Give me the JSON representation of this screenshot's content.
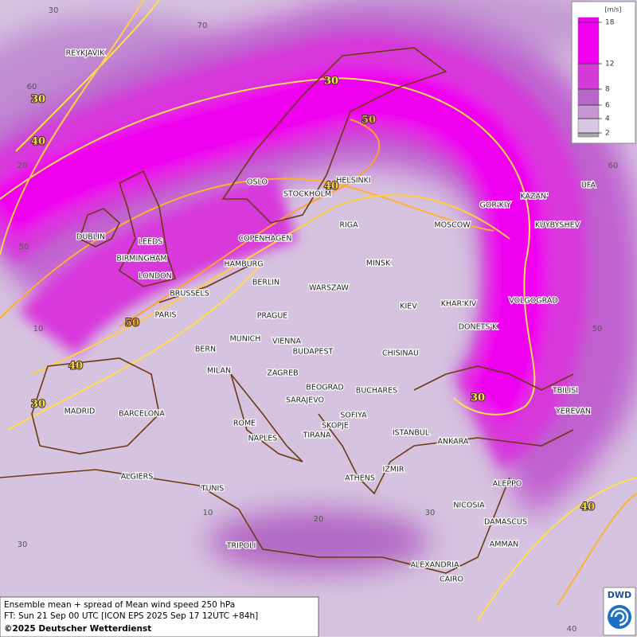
{
  "legend": {
    "unit": "[m/s]",
    "ticks": [
      18,
      12,
      8,
      6,
      4,
      2
    ],
    "colors": [
      "#f000f0",
      "#d43ad8",
      "#b866c8",
      "#c596d3",
      "#d9c6e3",
      "#a8a8a8"
    ]
  },
  "cities": [
    "REYKJAVIK",
    "OSLO",
    "STOCKHOLM",
    "HELSINKI",
    "DUBLIN",
    "LEEDS",
    "BIRMINGHAM",
    "LONDON",
    "COPENHAGEN",
    "HAMBURG",
    "BERLIN",
    "RIGA",
    "MOSCOW",
    "GOR'KIY",
    "KAZAN'",
    "UFA",
    "KUYBYSHEV",
    "MINSK",
    "WARSZAW",
    "KIEV",
    "KHAR'KIV",
    "VOLGOGRAD",
    "BRUSSELS",
    "PARIS",
    "PRAGUE",
    "DONETS'K",
    "MUNICH",
    "VIENNA",
    "BUDAPEST",
    "CHISINAU",
    "BERN",
    "MILAN",
    "ZAGREB",
    "BEOGRAD",
    "BUCHARES",
    "TBILISI",
    "YEREVAN",
    "MADRID",
    "BARCELONA",
    "SARAJEVO",
    "ROME",
    "SOFIYA",
    "SKOPJE",
    "TIRANA",
    "NAPLES",
    "ISTANBUL",
    "ANKARA",
    "ALGIERS",
    "ATHENS",
    "IZMIR",
    "ALEPPO",
    "TUNIS",
    "NICOSIA",
    "DAMASCUS",
    "AMMAN",
    "TRIPOLI",
    "ALEXANDRIA",
    "CAIRO"
  ],
  "contour_labels": [
    30,
    50,
    40,
    30,
    40,
    50,
    40,
    30,
    30,
    40
  ],
  "grid_labels": [
    30,
    70,
    60,
    20,
    60,
    50,
    10,
    50,
    10,
    20,
    30,
    30,
    40
  ],
  "footer": {
    "title": "Ensemble mean + spread of Mean wind speed 250 hPa",
    "forecast": "FT: Sun 21 Sep 00 UTC [ICON EPS 2025 Sep 17 12UTC +84h]",
    "copyright": "©2025 Deutscher Wetterdienst"
  },
  "logo": "DWD"
}
